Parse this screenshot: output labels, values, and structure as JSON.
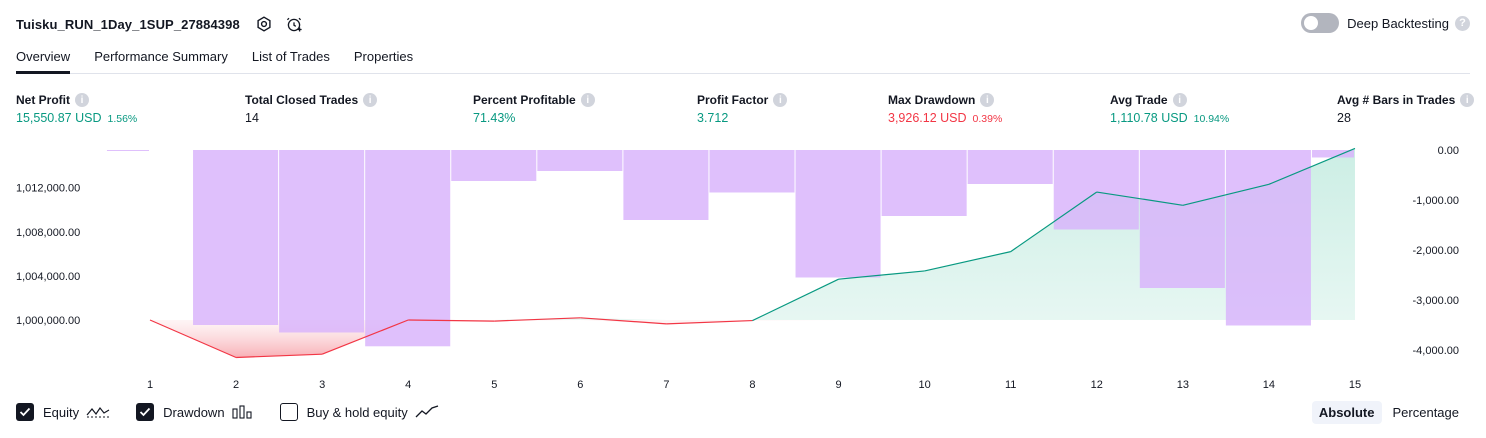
{
  "header": {
    "title": "Tuisku_RUN_1Day_1SUP_27884398",
    "icons": [
      "settings-icon",
      "add-alert-icon"
    ],
    "deep_backtesting_label": "Deep Backtesting",
    "deep_backtesting_on": false
  },
  "tabs": [
    {
      "label": "Overview",
      "active": true
    },
    {
      "label": "Performance Summary",
      "active": false
    },
    {
      "label": "List of Trades",
      "active": false
    },
    {
      "label": "Properties",
      "active": false
    }
  ],
  "metrics": [
    {
      "label": "Net Profit",
      "value": "15,550.87 USD",
      "pct": "1.56%",
      "tone": "pos"
    },
    {
      "label": "Total Closed Trades",
      "value": "14",
      "pct": "",
      "tone": "neutral"
    },
    {
      "label": "Percent Profitable",
      "value": "71.43%",
      "pct": "",
      "tone": "pos"
    },
    {
      "label": "Profit Factor",
      "value": "3.712",
      "pct": "",
      "tone": "pos"
    },
    {
      "label": "Max Drawdown",
      "value": "3,926.12 USD",
      "pct": "0.39%",
      "tone": "neg"
    },
    {
      "label": "Avg Trade",
      "value": "1,110.78 USD",
      "pct": "10.94%",
      "tone": "pos"
    },
    {
      "label": "Avg # Bars in Trades",
      "value": "28",
      "pct": "",
      "tone": "neutral"
    }
  ],
  "chart_data": {
    "type": "line",
    "x": [
      1,
      2,
      3,
      4,
      5,
      6,
      7,
      8,
      9,
      10,
      11,
      12,
      13,
      14,
      15
    ],
    "left_axis": {
      "ticks": [
        "1,000,000.00",
        "1,004,000.00",
        "1,008,000.00",
        "1,012,000.00"
      ],
      "tick_values": [
        1000000,
        1004000,
        1008000,
        1012000
      ],
      "ylim": [
        996400,
        1015400
      ]
    },
    "right_axis": {
      "ticks": [
        "0.00",
        "-1,000.00",
        "-2,000.00",
        "-3,000.00",
        "-4,000.00"
      ],
      "tick_values": [
        0,
        -1000,
        -2000,
        -3000,
        -4000
      ],
      "ylim": [
        -4200,
        0
      ]
    },
    "series": [
      {
        "name": "Equity",
        "axis": "left",
        "values": [
          1000000,
          996600,
          996900,
          1000000,
          999900,
          1000200,
          999650,
          999950,
          1003700,
          1004450,
          1006200,
          1011600,
          1010400,
          1012300,
          1015550
        ]
      },
      {
        "name": "Drawdown",
        "axis": "right",
        "values": [
          0,
          -3500,
          -3650,
          -3926,
          -620,
          -420,
          -1400,
          -850,
          -2550,
          -1320,
          -680,
          -1590,
          -2760,
          -3510,
          -150
        ]
      }
    ],
    "legend": [
      {
        "name": "Equity",
        "checked": true,
        "icon": "equity-line-icon"
      },
      {
        "name": "Drawdown",
        "checked": true,
        "icon": "drawdown-bars-icon"
      },
      {
        "name": "Buy & hold equity",
        "checked": false,
        "icon": "buy-hold-line-icon"
      }
    ],
    "colors": {
      "profit": "#089981",
      "loss": "#f23645",
      "drawdown": "#d8b2fb",
      "baseline_fill": "#c9ede3"
    }
  },
  "mode": {
    "options": [
      "Absolute",
      "Percentage"
    ],
    "selected": "Absolute"
  }
}
